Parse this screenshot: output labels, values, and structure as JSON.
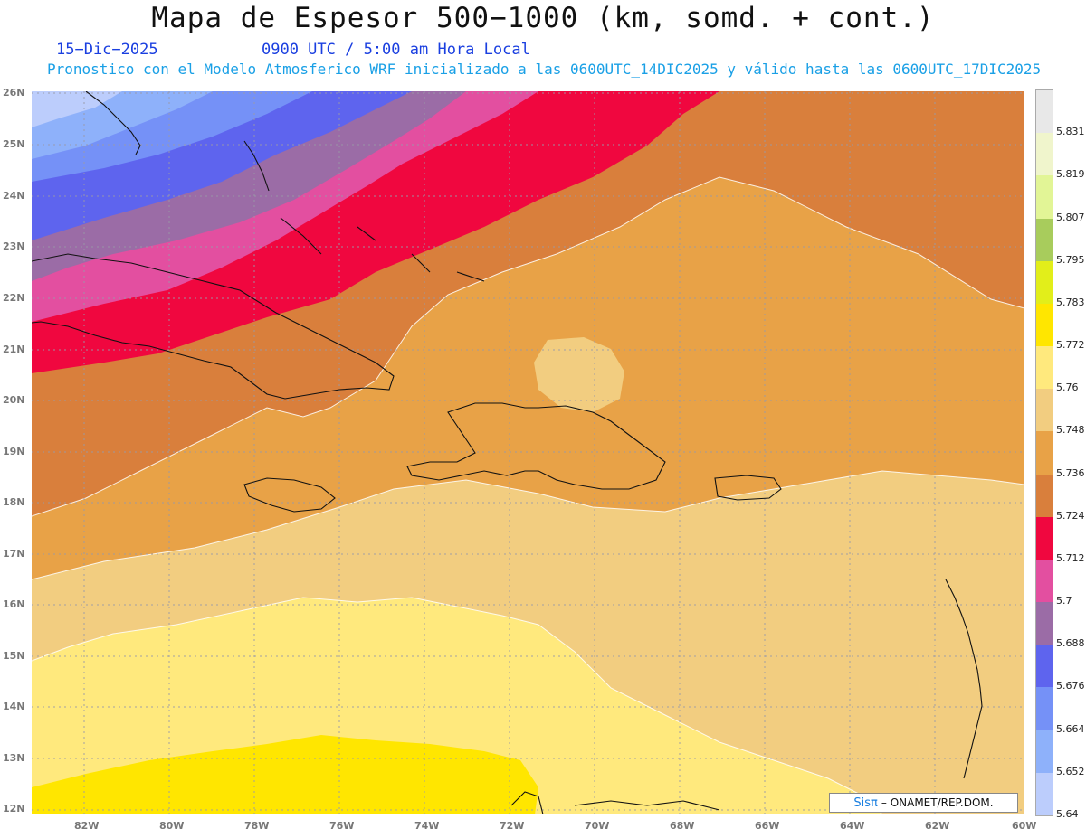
{
  "header": {
    "title": "Mapa de Espesor 500−1000 (km, somd. + cont.)",
    "date": "15−Dic−2025",
    "time": "0900 UTC / 5:00 am Hora Local",
    "model_info": "Pronostico con el Modelo Atmosferico WRF inicializado a las 0600UTC_14DIC2025 y válido hasta las  0600UTC_17DIC2025"
  },
  "map": {
    "lat_labels": [
      "26N",
      "25N",
      "24N",
      "23N",
      "22N",
      "21N",
      "20N",
      "19N",
      "18N",
      "17N",
      "16N",
      "15N",
      "14N",
      "13N",
      "12N"
    ],
    "lon_labels": [
      "82W",
      "80W",
      "78W",
      "76W",
      "74W",
      "72W",
      "70W",
      "68W",
      "66W",
      "64W",
      "62W",
      "60W"
    ]
  },
  "colorbar": {
    "levels": [
      "5.831",
      "5.819",
      "5.807",
      "5.795",
      "5.783",
      "5.772",
      "5.76",
      "5.748",
      "5.736",
      "5.724",
      "5.712",
      "5.7",
      "5.688",
      "5.676",
      "5.664",
      "5.652",
      "5.64"
    ],
    "colors": [
      "#e8e8e8",
      "#f0f5cc",
      "#e2f596",
      "#a8cc5c",
      "#e2ee1a",
      "#ffe600",
      "#ffe97d",
      "#f2cd80",
      "#e8a247",
      "#d97f3c",
      "#f0073f",
      "#e34fa0",
      "#9b6ca6",
      "#5e64ee",
      "#7591f7",
      "#8eb1fa",
      "#bccdfc"
    ]
  },
  "credit": {
    "brand": "Sisπ",
    "text": "– ONAMET/REP.DOM."
  }
}
